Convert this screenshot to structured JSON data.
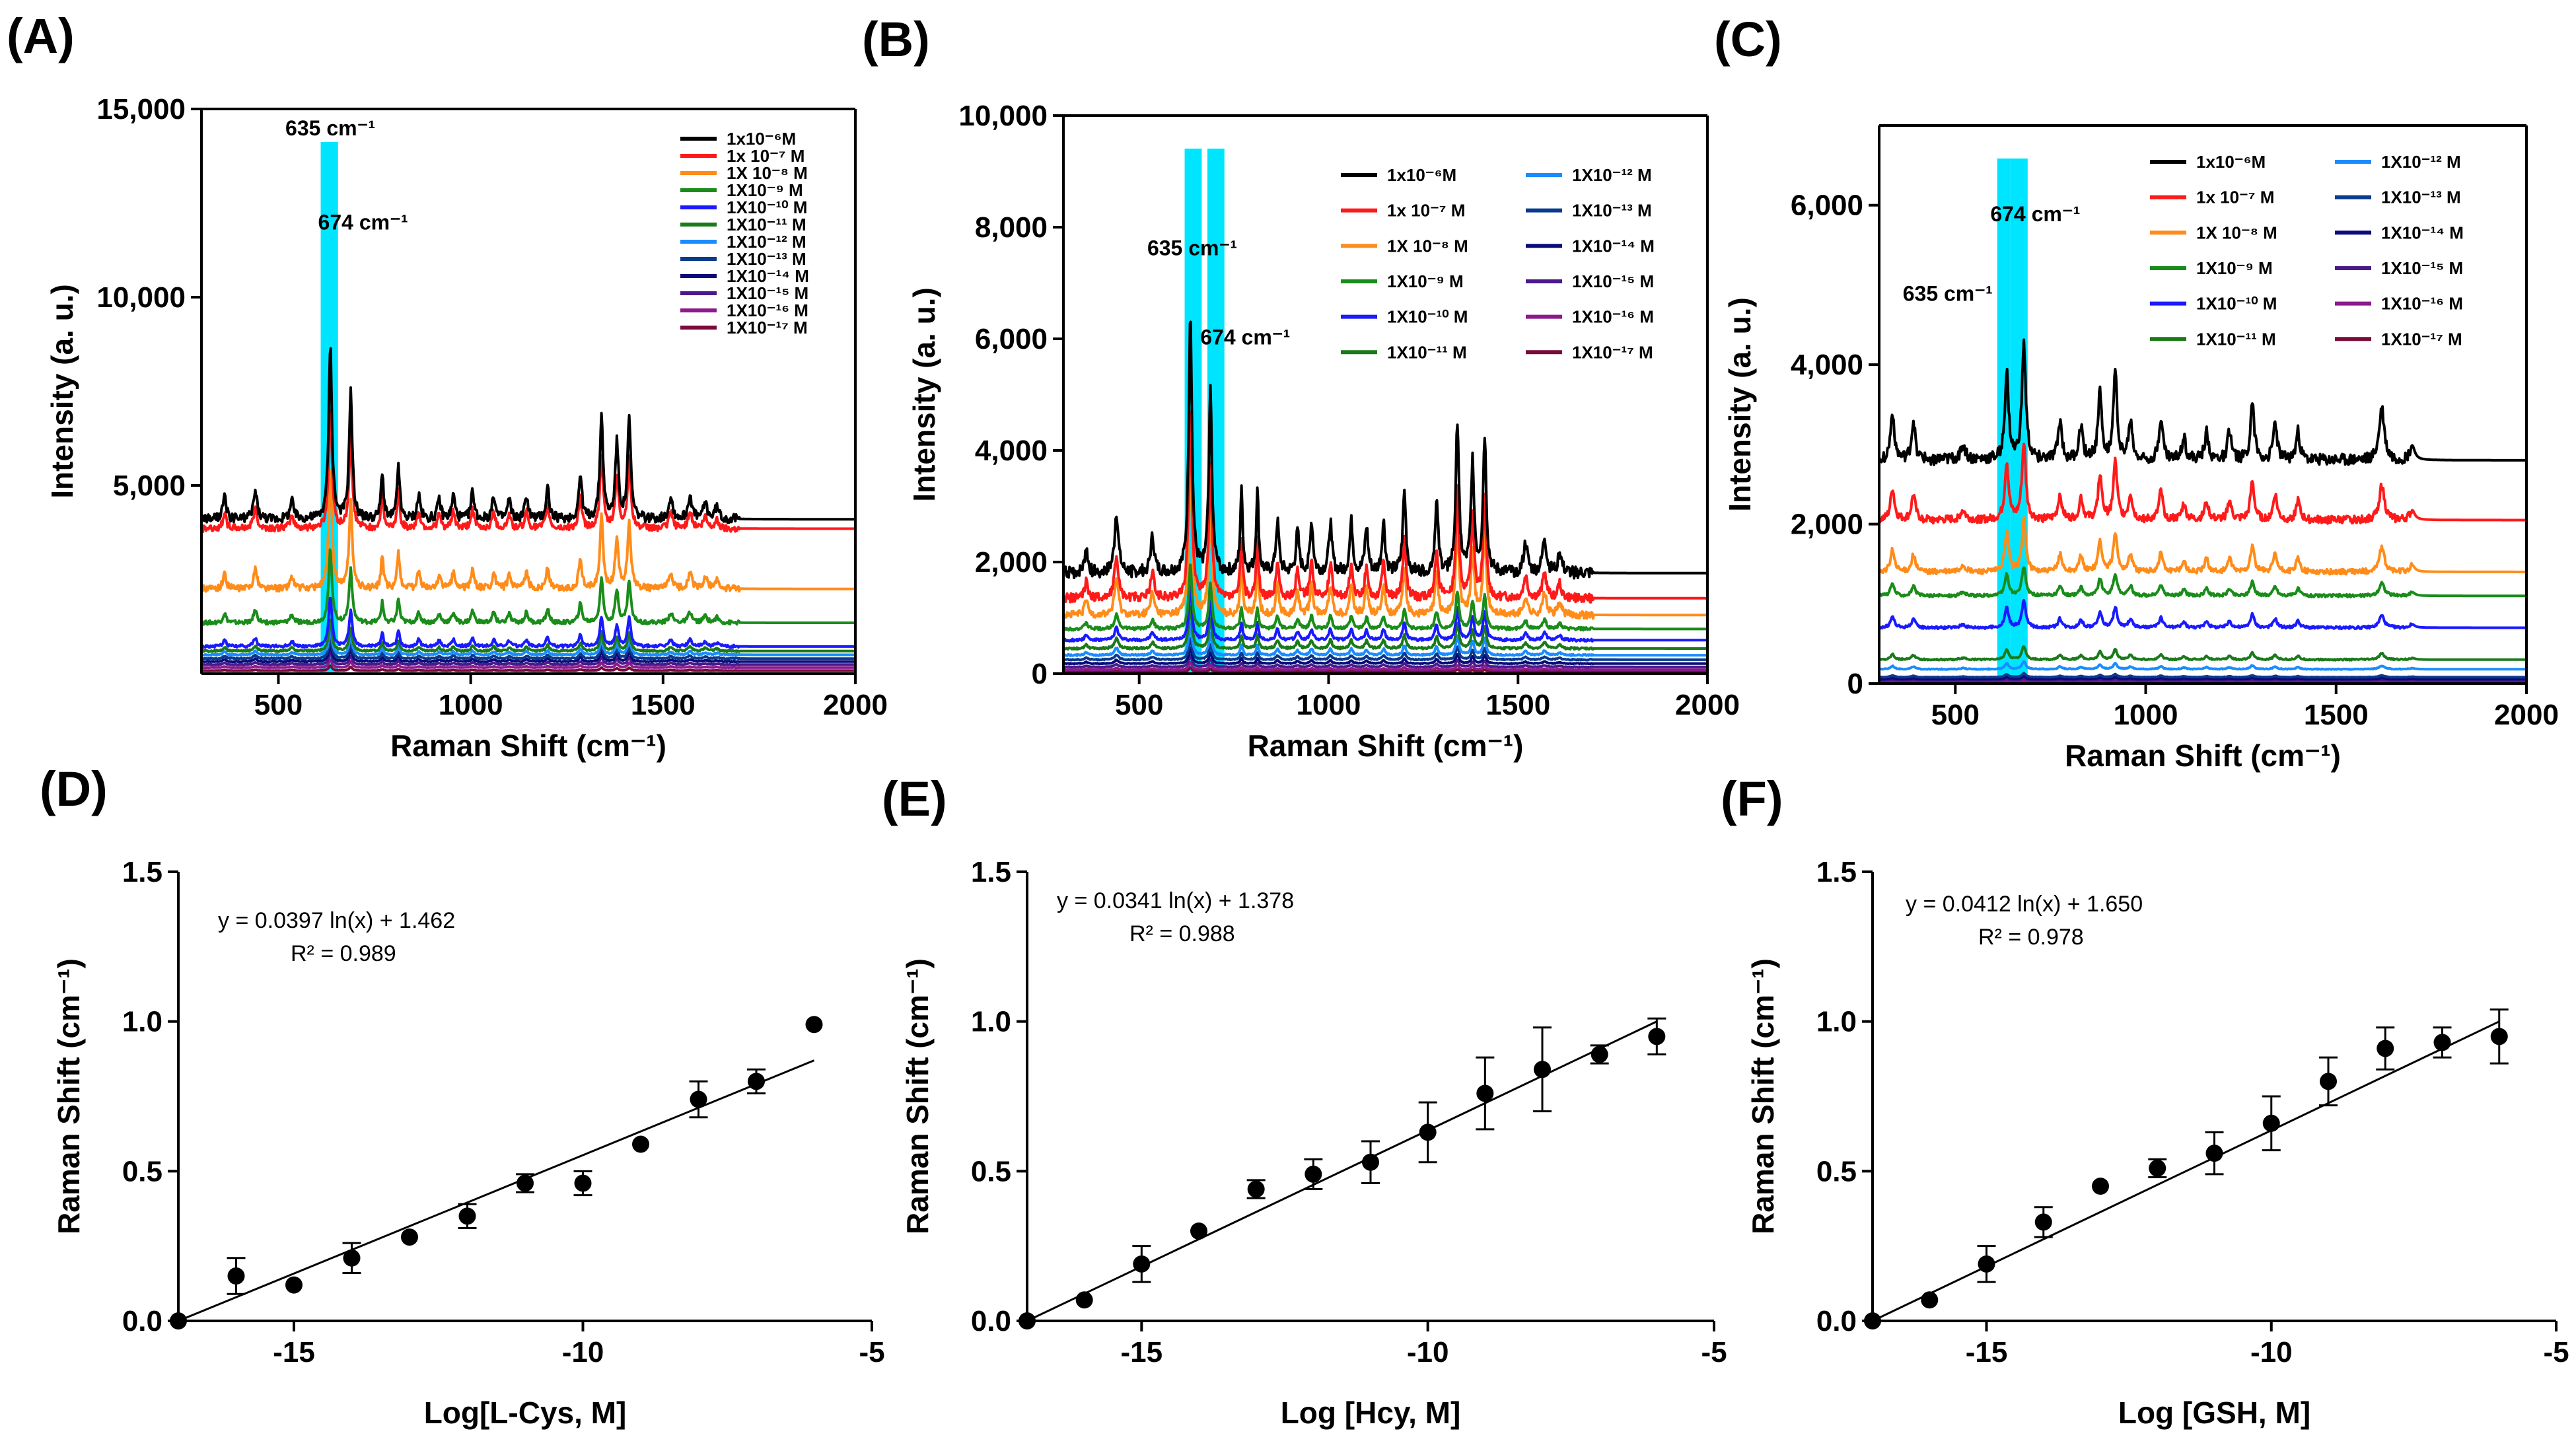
{
  "panels": [
    "(A)",
    "(B)",
    "(C)",
    "(D)",
    "(E)",
    "(F)"
  ],
  "colors": [
    "#000000",
    "#ff1a1a",
    "#ff8c1a",
    "#1a8c1a",
    "#1a1aff",
    "#1a7a1a",
    "#1a8cff",
    "#0a3a8c",
    "#0a0a7a",
    "#4a1a8c",
    "#8c1a8c",
    "#7a0a3a"
  ],
  "highlight_color": "#00e5ff",
  "chart_data": [
    {
      "id": "A",
      "type": "line",
      "xlabel": "Raman Shift (cm⁻¹)",
      "ylabel": "Intensity  (a. u.)",
      "xlim": [
        300,
        2000
      ],
      "ylim": [
        0,
        15000
      ],
      "xticks": [
        "500",
        "1000",
        "1500",
        "2000"
      ],
      "xtick_values": [
        500,
        1000,
        1500,
        2000
      ],
      "yticks": [
        "5,000",
        "10,000",
        "15,000"
      ],
      "ytick_values": [
        5000,
        10000,
        15000
      ],
      "highlights": [
        {
          "from": 610,
          "to": 655
        }
      ],
      "annotations": [
        {
          "text": "635 cm⁻¹",
          "x": 635,
          "y": 14300
        },
        {
          "text": "674 cm⁻¹",
          "x": 720,
          "y": 11800
        }
      ],
      "peaks": [
        {
          "x": 360,
          "h": 0.28,
          "w": 5
        },
        {
          "x": 440,
          "h": 0.35,
          "w": 6
        },
        {
          "x": 535,
          "h": 0.22,
          "w": 6
        },
        {
          "x": 635,
          "h": 2.2,
          "w": 5
        },
        {
          "x": 688,
          "h": 1.6,
          "w": 5
        },
        {
          "x": 770,
          "h": 0.6,
          "w": 4
        },
        {
          "x": 812,
          "h": 0.7,
          "w": 4
        },
        {
          "x": 865,
          "h": 0.3,
          "w": 5
        },
        {
          "x": 918,
          "h": 0.25,
          "w": 5
        },
        {
          "x": 955,
          "h": 0.3,
          "w": 5
        },
        {
          "x": 1005,
          "h": 0.35,
          "w": 5
        },
        {
          "x": 1060,
          "h": 0.3,
          "w": 5
        },
        {
          "x": 1100,
          "h": 0.25,
          "w": 5
        },
        {
          "x": 1145,
          "h": 0.3,
          "w": 5
        },
        {
          "x": 1200,
          "h": 0.4,
          "w": 5
        },
        {
          "x": 1285,
          "h": 0.55,
          "w": 5
        },
        {
          "x": 1340,
          "h": 1.3,
          "w": 5
        },
        {
          "x": 1380,
          "h": 0.95,
          "w": 5
        },
        {
          "x": 1412,
          "h": 1.25,
          "w": 5
        },
        {
          "x": 1520,
          "h": 0.28,
          "w": 6
        },
        {
          "x": 1570,
          "h": 0.3,
          "w": 6
        },
        {
          "x": 1610,
          "h": 0.2,
          "w": 6
        },
        {
          "x": 1640,
          "h": 0.15,
          "w": 6
        }
      ],
      "series": [
        {
          "name": "1x10⁻⁶M",
          "baseline": 4100,
          "scale": 2100
        },
        {
          "name": "1x 10⁻⁷ M",
          "baseline": 3850,
          "scale": 1500
        },
        {
          "name": "1X 10⁻⁸ M",
          "baseline": 2250,
          "scale": 1450
        },
        {
          "name": "1X10⁻⁹ M",
          "baseline": 1350,
          "scale": 900
        },
        {
          "name": "1X10⁻¹⁰ M",
          "baseline": 720,
          "scale": 600
        },
        {
          "name": "1X10⁻¹¹ M",
          "baseline": 600,
          "scale": 380
        },
        {
          "name": "1X10⁻¹² M",
          "baseline": 500,
          "scale": 300
        },
        {
          "name": "1X10⁻¹³ M",
          "baseline": 400,
          "scale": 250
        },
        {
          "name": "1X10⁻¹⁴ M",
          "baseline": 320,
          "scale": 200
        },
        {
          "name": "1X10⁻¹⁵ M",
          "baseline": 240,
          "scale": 150
        },
        {
          "name": "1X10⁻¹⁶ M",
          "baseline": 160,
          "scale": 100
        },
        {
          "name": "1X10⁻¹⁷ M",
          "baseline": 80,
          "scale": 60
        }
      ]
    },
    {
      "id": "B",
      "type": "line",
      "xlabel": "Raman Shift (cm⁻¹)",
      "ylabel": "Intensity  (a. u.)",
      "xlim": [
        300,
        2000
      ],
      "ylim": [
        0,
        10000
      ],
      "xticks": [
        "500",
        "1000",
        "1500",
        "2000"
      ],
      "xtick_values": [
        500,
        1000,
        1500,
        2000
      ],
      "yticks": [
        "0",
        "2,000",
        "4,000",
        "6,000",
        "8,000",
        "10,000"
      ],
      "ytick_values": [
        0,
        2000,
        4000,
        6000,
        8000,
        10000
      ],
      "highlights": [
        {
          "from": 620,
          "to": 665
        },
        {
          "from": 680,
          "to": 725
        }
      ],
      "annotations": [
        {
          "text": "635 cm⁻¹",
          "x": 640,
          "y": 7500
        },
        {
          "text": "674 cm⁻¹",
          "x": 780,
          "y": 5900
        }
      ],
      "peaks": [
        {
          "x": 360,
          "h": 0.25,
          "w": 5
        },
        {
          "x": 440,
          "h": 0.6,
          "w": 6
        },
        {
          "x": 535,
          "h": 0.35,
          "w": 6
        },
        {
          "x": 635,
          "h": 2.6,
          "w": 5
        },
        {
          "x": 688,
          "h": 1.8,
          "w": 5
        },
        {
          "x": 770,
          "h": 0.8,
          "w": 4
        },
        {
          "x": 812,
          "h": 0.8,
          "w": 4
        },
        {
          "x": 865,
          "h": 0.5,
          "w": 5
        },
        {
          "x": 918,
          "h": 0.4,
          "w": 5
        },
        {
          "x": 955,
          "h": 0.5,
          "w": 5
        },
        {
          "x": 1005,
          "h": 0.5,
          "w": 5
        },
        {
          "x": 1060,
          "h": 0.5,
          "w": 5
        },
        {
          "x": 1100,
          "h": 0.45,
          "w": 5
        },
        {
          "x": 1145,
          "h": 0.5,
          "w": 5
        },
        {
          "x": 1200,
          "h": 0.8,
          "w": 5
        },
        {
          "x": 1285,
          "h": 0.7,
          "w": 5
        },
        {
          "x": 1340,
          "h": 1.5,
          "w": 5
        },
        {
          "x": 1380,
          "h": 1.1,
          "w": 5
        },
        {
          "x": 1412,
          "h": 1.35,
          "w": 5
        },
        {
          "x": 1520,
          "h": 0.3,
          "w": 6
        },
        {
          "x": 1570,
          "h": 0.35,
          "w": 6
        },
        {
          "x": 1610,
          "h": 0.2,
          "w": 6
        }
      ],
      "series": [
        {
          "name": "1x10⁻⁶M",
          "baseline": 1800,
          "scale": 1800
        },
        {
          "name": "1x 10⁻⁷ M",
          "baseline": 1350,
          "scale": 1300
        },
        {
          "name": "1X 10⁻⁸ M",
          "baseline": 1050,
          "scale": 1100
        },
        {
          "name": "1X10⁻⁹ M",
          "baseline": 800,
          "scale": 450
        },
        {
          "name": "1X10⁻¹⁰ M",
          "baseline": 600,
          "scale": 380
        },
        {
          "name": "1X10⁻¹¹ M",
          "baseline": 450,
          "scale": 300
        },
        {
          "name": "1X10⁻¹² M",
          "baseline": 330,
          "scale": 220
        },
        {
          "name": "1X10⁻¹³ M",
          "baseline": 250,
          "scale": 150
        },
        {
          "name": "1X10⁻¹⁴ M",
          "baseline": 180,
          "scale": 110
        },
        {
          "name": "1X10⁻¹⁵ M",
          "baseline": 120,
          "scale": 80
        },
        {
          "name": "1X10⁻¹⁶ M",
          "baseline": 70,
          "scale": 50
        },
        {
          "name": "1X10⁻¹⁷ M",
          "baseline": 30,
          "scale": 30
        }
      ]
    },
    {
      "id": "C",
      "type": "line",
      "xlabel": "Raman Shift (cm⁻¹)",
      "ylabel": "Intensity  (a. u.)",
      "xlim": [
        300,
        2000
      ],
      "ylim": [
        0,
        7000
      ],
      "xticks": [
        "500",
        "1000",
        "1500",
        "2000"
      ],
      "xtick_values": [
        500,
        1000,
        1500,
        2000
      ],
      "yticks": [
        "0",
        "2,000",
        "4,000",
        "6,000"
      ],
      "ytick_values": [
        0,
        2000,
        4000,
        6000
      ],
      "highlights": [
        {
          "from": 610,
          "to": 645
        },
        {
          "from": 645,
          "to": 690
        }
      ],
      "annotations": [
        {
          "text": "635 cm⁻¹",
          "x": 480,
          "y": 4800
        },
        {
          "text": "674 cm⁻¹",
          "x": 710,
          "y": 5800
        }
      ],
      "peaks": [
        {
          "x": 335,
          "h": 0.5,
          "w": 6
        },
        {
          "x": 390,
          "h": 0.4,
          "w": 6
        },
        {
          "x": 520,
          "h": 0.15,
          "w": 8
        },
        {
          "x": 635,
          "h": 0.9,
          "w": 6
        },
        {
          "x": 680,
          "h": 1.2,
          "w": 6
        },
        {
          "x": 775,
          "h": 0.4,
          "w": 6
        },
        {
          "x": 830,
          "h": 0.35,
          "w": 6
        },
        {
          "x": 880,
          "h": 0.7,
          "w": 6
        },
        {
          "x": 920,
          "h": 0.9,
          "w": 6
        },
        {
          "x": 960,
          "h": 0.4,
          "w": 6
        },
        {
          "x": 1040,
          "h": 0.45,
          "w": 6
        },
        {
          "x": 1100,
          "h": 0.25,
          "w": 6
        },
        {
          "x": 1160,
          "h": 0.3,
          "w": 6
        },
        {
          "x": 1220,
          "h": 0.3,
          "w": 6
        },
        {
          "x": 1280,
          "h": 0.6,
          "w": 6
        },
        {
          "x": 1340,
          "h": 0.4,
          "w": 6
        },
        {
          "x": 1400,
          "h": 0.3,
          "w": 6
        },
        {
          "x": 1620,
          "h": 0.55,
          "w": 8
        },
        {
          "x": 1700,
          "h": 0.15,
          "w": 8
        }
      ],
      "series": [
        {
          "name": "1x10⁻⁶M",
          "baseline": 2800,
          "scale": 1200
        },
        {
          "name": "1x 10⁻⁷ M",
          "baseline": 2050,
          "scale": 800
        },
        {
          "name": "1X 10⁻⁸ M",
          "baseline": 1400,
          "scale": 550
        },
        {
          "name": "1X10⁻⁹ M",
          "baseline": 1100,
          "scale": 300
        },
        {
          "name": "1X10⁻¹⁰ M",
          "baseline": 700,
          "scale": 280
        },
        {
          "name": "1X10⁻¹¹ M",
          "baseline": 300,
          "scale": 140
        },
        {
          "name": "1X10⁻¹² M",
          "baseline": 180,
          "scale": 80
        },
        {
          "name": "1X10⁻¹³ M",
          "baseline": 80,
          "scale": 40
        },
        {
          "name": "1X10⁻¹⁴ M",
          "baseline": 55,
          "scale": 30
        },
        {
          "name": "1X10⁻¹⁵ M",
          "baseline": 40,
          "scale": 20
        },
        {
          "name": "1X10⁻¹⁶ M",
          "baseline": 25,
          "scale": 15
        },
        {
          "name": "1X10⁻¹⁷ M",
          "baseline": 10,
          "scale": 10
        }
      ]
    },
    {
      "id": "D",
      "type": "scatter",
      "xlabel": "Log[L-Cys, M]",
      "ylabel": "Raman Shift (cm⁻¹)",
      "xlim": [
        -17,
        -5
      ],
      "ylim": [
        0,
        1.5
      ],
      "xticks": [
        "-15",
        "-10",
        "-5"
      ],
      "xtick_values": [
        -15,
        -10,
        -5
      ],
      "yticks": [
        "0.0",
        "0.5",
        "1.0",
        "1.5"
      ],
      "ytick_values": [
        0,
        0.5,
        1.0,
        1.5
      ],
      "equation": "y = 0.0397 ln(x) + 1.462",
      "r2": "R² = 0.989",
      "fit": {
        "x0": -17,
        "y0": 0.0,
        "x1": -6,
        "y1": 0.87
      },
      "x": [
        -17,
        -16,
        -15,
        -14,
        -13,
        -12,
        -11,
        -10,
        -9,
        -8,
        -7,
        -6
      ],
      "y": [
        0.0,
        0.15,
        0.12,
        0.21,
        0.28,
        0.35,
        0.46,
        0.46,
        0.59,
        0.74,
        0.8,
        0.99
      ],
      "err": [
        0,
        0.06,
        0,
        0.05,
        0,
        0.04,
        0.03,
        0.04,
        0,
        0.06,
        0.04,
        0
      ]
    },
    {
      "id": "E",
      "type": "scatter",
      "xlabel": "Log [Hcy, M]",
      "ylabel": "Raman Shift (cm⁻¹)",
      "xlim": [
        -17,
        -5
      ],
      "ylim": [
        0,
        1.5
      ],
      "xticks": [
        "-15",
        "-10",
        "-5"
      ],
      "xtick_values": [
        -15,
        -10,
        -5
      ],
      "yticks": [
        "0.0",
        "0.5",
        "1.0",
        "1.5"
      ],
      "ytick_values": [
        0,
        0.5,
        1.0,
        1.5
      ],
      "equation": "y = 0.0341 ln(x) + 1.378",
      "r2": "R² = 0.988",
      "fit": {
        "x0": -17,
        "y0": 0.0,
        "x1": -6,
        "y1": 1.0
      },
      "x": [
        -17,
        -16,
        -15,
        -14,
        -13,
        -12,
        -11,
        -10,
        -9,
        -8,
        -7,
        -6
      ],
      "y": [
        0.0,
        0.07,
        0.19,
        0.3,
        0.44,
        0.49,
        0.53,
        0.63,
        0.76,
        0.84,
        0.89,
        0.95
      ],
      "err": [
        0,
        0,
        0.06,
        0,
        0.03,
        0.05,
        0.07,
        0.1,
        0.12,
        0.14,
        0.03,
        0.06
      ]
    },
    {
      "id": "F",
      "type": "scatter",
      "xlabel": "Log [GSH, M]",
      "ylabel": "Raman Shift (cm⁻¹)",
      "xlim": [
        -17,
        -5
      ],
      "ylim": [
        0,
        1.5
      ],
      "xticks": [
        "-15",
        "-10",
        "-5"
      ],
      "xtick_values": [
        -15,
        -10,
        -5
      ],
      "yticks": [
        "0.0",
        "0.5",
        "1.0",
        "1.5"
      ],
      "ytick_values": [
        0,
        0.5,
        1.0,
        1.5
      ],
      "equation": "y = 0.0412 ln(x) + 1.650",
      "r2": "R² = 0.978",
      "fit": {
        "x0": -17,
        "y0": 0.0,
        "x1": -6,
        "y1": 1.0
      },
      "x": [
        -17,
        -16,
        -15,
        -14,
        -13,
        -12,
        -11,
        -10,
        -9,
        -8,
        -7,
        -6
      ],
      "y": [
        0.0,
        0.07,
        0.19,
        0.33,
        0.45,
        0.51,
        0.56,
        0.66,
        0.8,
        0.91,
        0.93,
        0.95
      ],
      "err": [
        0,
        0,
        0.06,
        0.05,
        0,
        0.03,
        0.07,
        0.09,
        0.08,
        0.07,
        0.05,
        0.09
      ]
    }
  ]
}
